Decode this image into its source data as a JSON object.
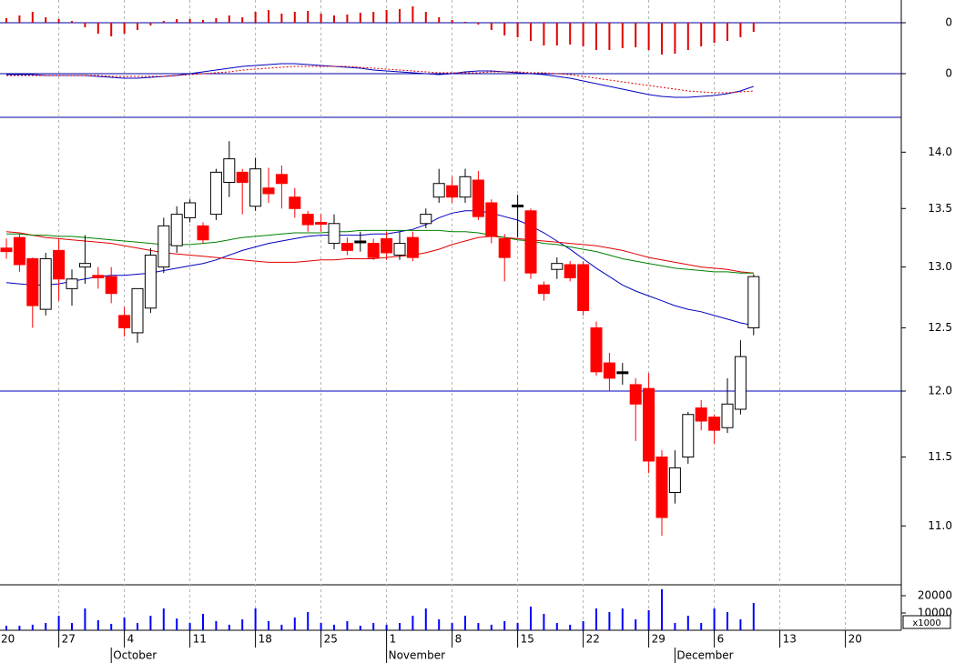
{
  "chart_data": [
    {
      "type": "bar",
      "color": "#e00000",
      "ylim": [
        -45,
        25
      ],
      "yticks": [
        0
      ],
      "grid": true,
      "grid_color": "#0000a0",
      "values": [
        null,
        5,
        8,
        12,
        6,
        4,
        2,
        -5,
        -12,
        -15,
        -12,
        -8,
        -3,
        2,
        4,
        4,
        3,
        5,
        8,
        6,
        12,
        14,
        10,
        12,
        13,
        10,
        8,
        9,
        11,
        12,
        14,
        15,
        18,
        12,
        6,
        3,
        1,
        -2,
        -8,
        -14,
        -16,
        -20,
        -25,
        -25,
        -24,
        -26,
        -30,
        -30,
        -28,
        -27,
        -30,
        -35,
        -34,
        -30,
        -26,
        -22,
        -20,
        -16,
        -10,
        null,
        null,
        null,
        null,
        null,
        null,
        null
      ]
    },
    {
      "type": "line",
      "ylim": [
        -48,
        21
      ],
      "yticks": [
        0
      ],
      "grid": true,
      "grid_color": "#0000a0",
      "series": [
        {
          "color": "#0000c0",
          "dash": false,
          "values": [
            null,
            -1,
            -1,
            -1,
            -2,
            -2,
            -2,
            -2,
            -3,
            -4,
            -5,
            -5,
            -4,
            -3,
            -2,
            0,
            2,
            4,
            6,
            8,
            9,
            10,
            11,
            11,
            10,
            9,
            8,
            7,
            6,
            4,
            3,
            2,
            1,
            0,
            -1,
            0,
            2,
            3,
            3,
            2,
            1,
            0,
            -1,
            -3,
            -5,
            -8,
            -11,
            -14,
            -17,
            -20,
            -23,
            -25,
            -26,
            -26,
            -25,
            -24,
            -22,
            -19,
            -14,
            null,
            null,
            null,
            null,
            null,
            null,
            null
          ]
        },
        {
          "color": "#e00000",
          "dash": true,
          "values": [
            null,
            -2,
            -2,
            -2,
            -2,
            -2,
            -2,
            -2,
            -2,
            -3,
            -3,
            -3,
            -3,
            -3,
            -2,
            -1,
            0,
            1,
            2,
            4,
            5,
            6,
            7,
            8,
            8,
            8,
            8,
            8,
            7,
            6,
            5,
            4,
            3,
            2,
            1,
            1,
            1,
            1,
            2,
            2,
            2,
            1,
            1,
            0,
            -1,
            -3,
            -5,
            -7,
            -9,
            -11,
            -13,
            -15,
            -17,
            -19,
            -20,
            -21,
            -21,
            -20,
            -19,
            null,
            null,
            null,
            null,
            null,
            null,
            null
          ]
        }
      ]
    },
    {
      "type": "candlestick",
      "log": true,
      "ylim": [
        10.59,
        14.31
      ],
      "yticks": [
        {
          "value": 11,
          "label": "11.0"
        },
        {
          "value": 11.5,
          "label": "11.5"
        },
        {
          "value": 12,
          "label": "12.0"
        },
        {
          "value": 12.5,
          "label": "12.5"
        },
        {
          "value": 13,
          "label": "13.0"
        },
        {
          "value": 13.5,
          "label": "13.5"
        },
        {
          "value": 14,
          "label": "14.0"
        }
      ],
      "hline": 12,
      "hline_color": "#0000c0",
      "up_color": "#ffffff",
      "down_color": "#ff0000",
      "flat_color": "#000000",
      "open": [
        null,
        13.16,
        13.25,
        13.07,
        12.65,
        13.14,
        12.82,
        13.0,
        12.93,
        12.92,
        12.6,
        12.46,
        12.66,
        13.0,
        13.18,
        13.42,
        13.35,
        13.45,
        13.73,
        13.82,
        13.52,
        13.68,
        13.8,
        13.6,
        13.45,
        13.38,
        13.2,
        13.2,
        13.22,
        13.2,
        13.24,
        13.1,
        13.25,
        13.37,
        13.6,
        13.7,
        13.6,
        13.75,
        13.55,
        13.24,
        13.53,
        13.48,
        12.85,
        12.98,
        13.02,
        13.02,
        12.5,
        12.22,
        12.15,
        12.05,
        12.02,
        11.5,
        11.24,
        11.5,
        11.87,
        11.8,
        11.72,
        11.86,
        12.5,
        null,
        null,
        null,
        null,
        null,
        null,
        null
      ],
      "high": [
        null,
        13.24,
        13.28,
        13.08,
        13.12,
        13.24,
        12.98,
        13.27,
        13.0,
        13.0,
        12.67,
        12.82,
        13.16,
        13.42,
        13.52,
        13.58,
        13.38,
        13.85,
        14.1,
        13.85,
        13.95,
        13.86,
        13.88,
        13.68,
        13.48,
        13.45,
        13.45,
        13.25,
        13.3,
        13.24,
        13.3,
        13.3,
        13.3,
        13.5,
        13.85,
        13.78,
        13.85,
        13.83,
        13.58,
        13.28,
        13.62,
        13.5,
        12.88,
        13.08,
        13.05,
        13.05,
        12.55,
        12.3,
        12.22,
        12.1,
        12.14,
        11.55,
        11.55,
        11.84,
        11.93,
        11.82,
        12.1,
        12.4,
        12.94,
        null,
        null,
        null,
        null,
        null,
        null,
        null
      ],
      "low": [
        null,
        13.07,
        12.96,
        12.5,
        12.6,
        12.72,
        12.68,
        12.86,
        12.82,
        12.7,
        12.43,
        12.38,
        12.62,
        12.95,
        13.12,
        13.38,
        13.2,
        13.4,
        13.6,
        13.45,
        13.48,
        13.55,
        13.5,
        13.42,
        13.3,
        13.3,
        13.15,
        13.1,
        13.13,
        13.06,
        13.06,
        13.06,
        13.05,
        13.33,
        13.55,
        13.55,
        13.55,
        13.4,
        13.2,
        12.88,
        13.25,
        12.9,
        12.72,
        12.9,
        12.88,
        12.6,
        12.12,
        12.0,
        12.05,
        11.62,
        11.38,
        10.93,
        11.16,
        11.45,
        11.7,
        11.6,
        11.68,
        11.82,
        12.44,
        null,
        null,
        null,
        null,
        null,
        null,
        null
      ],
      "close": [
        null,
        13.13,
        13.02,
        12.68,
        13.07,
        12.9,
        12.9,
        13.03,
        12.91,
        12.78,
        12.5,
        12.82,
        13.1,
        13.35,
        13.45,
        13.55,
        13.23,
        13.82,
        13.94,
        13.73,
        13.85,
        13.63,
        13.72,
        13.5,
        13.36,
        13.37,
        13.37,
        13.14,
        13.22,
        13.08,
        13.12,
        13.2,
        13.08,
        13.45,
        13.72,
        13.6,
        13.78,
        13.43,
        13.26,
        13.08,
        13.53,
        12.95,
        12.78,
        13.03,
        12.91,
        12.64,
        12.15,
        12.1,
        12.15,
        11.9,
        11.47,
        11.06,
        11.42,
        11.82,
        11.77,
        11.7,
        11.9,
        12.27,
        12.92,
        null,
        null,
        null,
        null,
        null,
        null,
        null
      ],
      "series": [
        {
          "color": "#0000c0",
          "values": [
            null,
            12.87,
            12.86,
            12.85,
            12.85,
            12.86,
            12.88,
            12.9,
            12.92,
            12.93,
            12.93,
            12.94,
            12.95,
            12.97,
            12.99,
            13.01,
            13.03,
            13.06,
            13.1,
            13.14,
            13.17,
            13.2,
            13.22,
            13.24,
            13.26,
            13.27,
            13.27,
            13.27,
            13.27,
            13.28,
            13.28,
            13.3,
            13.32,
            13.36,
            13.42,
            13.46,
            13.48,
            13.48,
            13.46,
            13.43,
            13.4,
            13.35,
            13.29,
            13.22,
            13.15,
            13.07,
            12.99,
            12.92,
            12.85,
            12.8,
            12.76,
            12.72,
            12.68,
            12.65,
            12.63,
            12.6,
            12.57,
            12.54,
            12.52,
            null,
            null,
            null,
            null,
            null,
            null,
            null
          ]
        },
        {
          "color": "#e00000",
          "values": [
            null,
            13.3,
            13.29,
            13.27,
            13.25,
            13.24,
            13.23,
            13.22,
            13.21,
            13.2,
            13.18,
            13.16,
            13.14,
            13.12,
            13.11,
            13.1,
            13.09,
            13.08,
            13.07,
            13.06,
            13.05,
            13.04,
            13.04,
            13.04,
            13.05,
            13.06,
            13.06,
            13.07,
            13.07,
            13.07,
            13.08,
            13.09,
            13.1,
            13.12,
            13.15,
            13.19,
            13.22,
            13.25,
            13.26,
            13.25,
            13.24,
            13.23,
            13.22,
            13.21,
            13.2,
            13.19,
            13.18,
            13.16,
            13.14,
            13.11,
            13.08,
            13.06,
            13.04,
            13.02,
            13.0,
            12.99,
            12.98,
            12.96,
            12.95,
            null,
            null,
            null,
            null,
            null,
            null,
            null
          ]
        },
        {
          "color": "#008000",
          "values": [
            null,
            13.28,
            13.28,
            13.27,
            13.27,
            13.26,
            13.26,
            13.25,
            13.24,
            13.23,
            13.22,
            13.21,
            13.2,
            13.19,
            13.19,
            13.19,
            13.2,
            13.21,
            13.23,
            13.25,
            13.26,
            13.27,
            13.28,
            13.29,
            13.29,
            13.29,
            13.3,
            13.3,
            13.31,
            13.31,
            13.31,
            13.31,
            13.31,
            13.31,
            13.31,
            13.3,
            13.3,
            13.29,
            13.27,
            13.25,
            13.23,
            13.22,
            13.2,
            13.19,
            13.17,
            13.15,
            13.13,
            13.1,
            13.07,
            13.05,
            13.03,
            13.01,
            12.99,
            12.98,
            12.97,
            12.96,
            12.96,
            12.95,
            12.95,
            null,
            null,
            null,
            null,
            null,
            null,
            null
          ]
        }
      ]
    },
    {
      "type": "bar",
      "color": "#0000ff",
      "ylim": [
        0,
        26300
      ],
      "yticks": [
        10000,
        20000
      ],
      "unit_label": "x1000",
      "grid_x": true,
      "values": [
        null,
        2600,
        2600,
        3200,
        4200,
        8400,
        4200,
        12600,
        5800,
        3700,
        7400,
        4200,
        8400,
        12600,
        6800,
        4200,
        9500,
        5300,
        3200,
        6300,
        12600,
        5300,
        3200,
        7400,
        10500,
        4200,
        3200,
        5300,
        2600,
        4200,
        3200,
        4200,
        8400,
        12600,
        6300,
        4200,
        8400,
        4200,
        3200,
        5300,
        4200,
        13700,
        9500,
        4200,
        3200,
        5300,
        12600,
        10500,
        12600,
        6300,
        11600,
        23700,
        4200,
        8400,
        4200,
        12600,
        10500,
        6300,
        15800,
        null,
        null,
        null,
        null,
        null,
        null,
        null
      ],
      "categories": [
        "20",
        null,
        null,
        null,
        null,
        "27",
        null,
        null,
        null,
        null,
        "4",
        null,
        null,
        null,
        null,
        "11",
        null,
        null,
        null,
        null,
        "18",
        null,
        null,
        null,
        null,
        "25",
        null,
        null,
        null,
        null,
        "1",
        null,
        null,
        null,
        null,
        "8",
        null,
        null,
        null,
        null,
        "15",
        null,
        null,
        null,
        null,
        "22",
        null,
        null,
        null,
        null,
        "29",
        null,
        null,
        null,
        null,
        "6",
        null,
        null,
        null,
        null,
        "13",
        null,
        null,
        null,
        null,
        "20"
      ],
      "month_categories": [
        null,
        null,
        null,
        null,
        null,
        null,
        null,
        null,
        null,
        "October",
        null,
        null,
        null,
        null,
        null,
        null,
        null,
        null,
        null,
        null,
        null,
        null,
        null,
        null,
        null,
        null,
        null,
        null,
        null,
        null,
        "November",
        null,
        null,
        null,
        null,
        null,
        null,
        null,
        null,
        null,
        null,
        null,
        null,
        null,
        null,
        null,
        null,
        null,
        null,
        null,
        null,
        null,
        "December",
        null,
        null,
        null,
        null,
        null,
        null,
        null,
        null,
        null,
        null,
        null,
        null,
        null
      ]
    }
  ]
}
